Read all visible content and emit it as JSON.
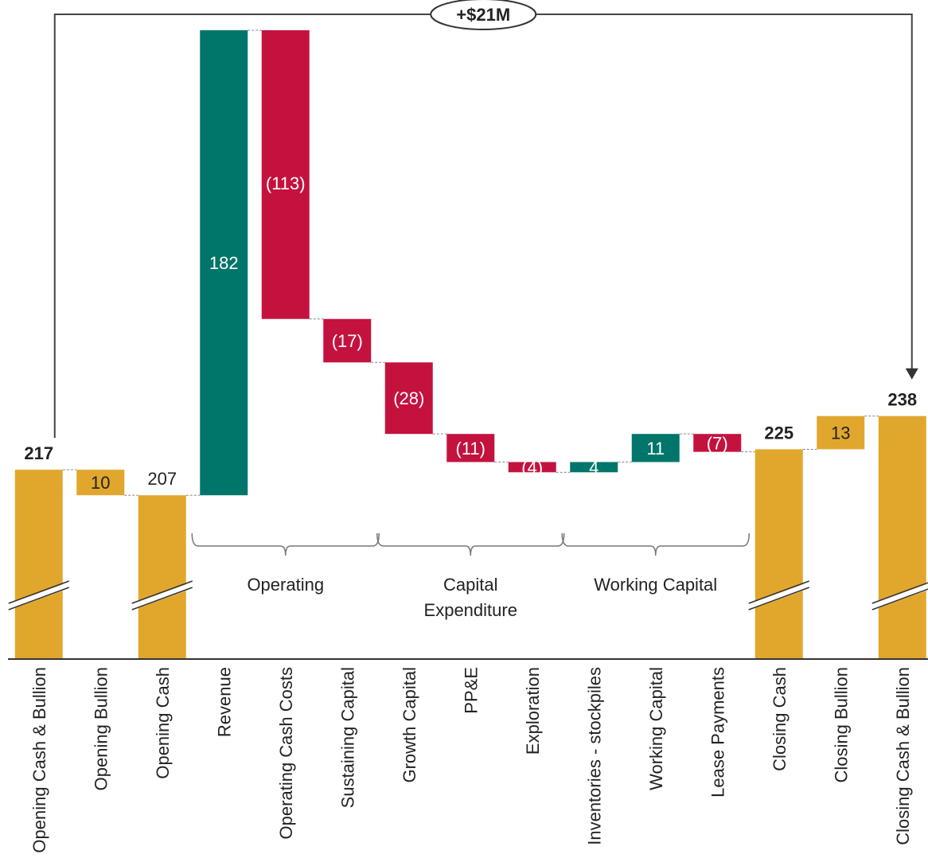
{
  "chart_data": {
    "type": "bar",
    "subtype": "waterfall",
    "categories": [
      "Opening Cash & Bullion",
      "Opening Bullion",
      "Opening Cash",
      "Revenue",
      "Operating Cash Costs",
      "Sustaining Capital",
      "Growth Capital",
      "PP&E",
      "Exploration",
      "Inventories - stockpiles",
      "Working Capital",
      "Lease Payments",
      "Closing Cash",
      "Closing Bullion",
      "Closing Cash & Bullion"
    ],
    "values": [
      217,
      -10,
      207,
      182,
      -113,
      -17,
      -28,
      -11,
      -4,
      4,
      11,
      -7,
      225,
      13,
      238
    ],
    "kinds": [
      "total",
      "bullion_down",
      "total",
      "pos",
      "neg",
      "neg",
      "neg",
      "neg",
      "neg",
      "pos",
      "pos",
      "neg",
      "total",
      "bullion_up",
      "total"
    ],
    "value_labels": [
      "217",
      "10",
      "207",
      "182",
      "(113)",
      "(17)",
      "(28)",
      "(11)",
      "(4)",
      "4",
      "11",
      "(7)",
      "225",
      "13",
      "238"
    ],
    "bold_labels": [
      true,
      false,
      false,
      false,
      false,
      false,
      false,
      false,
      false,
      false,
      false,
      false,
      true,
      false,
      true
    ],
    "groups": [
      {
        "label_lines": [
          "Operating"
        ],
        "from": 3,
        "to": 5
      },
      {
        "label_lines": [
          "Capital",
          "Expenditure"
        ],
        "from": 6,
        "to": 8
      },
      {
        "label_lines": [
          "Working Capital"
        ],
        "from": 9,
        "to": 11
      }
    ],
    "change_callout": "+$21M",
    "axis_break_on_totals": true,
    "colors": {
      "total": "#E1A72D",
      "positive": "#00756A",
      "negative": "#C4123F",
      "text_dark": "#222222",
      "text_light": "#ffffff",
      "axis": "#333333"
    },
    "title": "",
    "xlabel": "",
    "ylabel": ""
  }
}
